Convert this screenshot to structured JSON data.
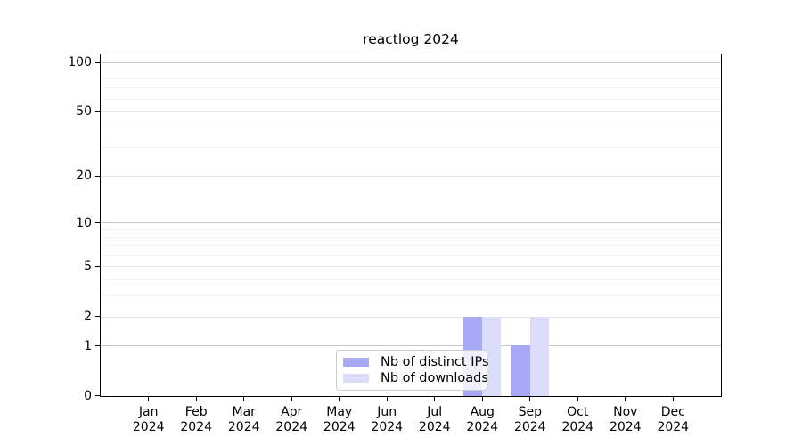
{
  "chart_data": {
    "type": "bar",
    "title": "reactlog 2024",
    "categories": [
      "Jan",
      "Feb",
      "Mar",
      "Apr",
      "May",
      "Jun",
      "Jul",
      "Aug",
      "Sep",
      "Oct",
      "Nov",
      "Dec"
    ],
    "year_label": "2024",
    "series": [
      {
        "name": "Nb of distinct IPs",
        "color": "#a8a9f6",
        "values": [
          0,
          0,
          0,
          0,
          0,
          0,
          0,
          2,
          1,
          0,
          0,
          0
        ]
      },
      {
        "name": "Nb of downloads",
        "color": "#dcddfb",
        "values": [
          0,
          0,
          0,
          0,
          0,
          0,
          0,
          2,
          2,
          0,
          0,
          0
        ]
      }
    ],
    "y_axis": {
      "scale": "log1p",
      "major_tick_values": [
        0,
        1,
        2,
        5,
        10,
        20,
        50,
        100
      ],
      "major_tick_labels": [
        "0",
        "1",
        "2",
        "5",
        "10",
        "20",
        "50",
        "100"
      ],
      "decade_gridlines": [
        1,
        10,
        100
      ],
      "light_major_gridlines": [
        2,
        5,
        20,
        50
      ],
      "minor_gridlines": [
        3,
        4,
        6,
        7,
        8,
        9,
        30,
        40,
        60,
        70,
        80,
        90
      ]
    },
    "legend": {
      "position": "bottom-center",
      "entries": [
        "Nb of distinct IPs",
        "Nb of downloads"
      ]
    },
    "grid": true,
    "colors": {
      "bar_distinct_ips": "#a8a9f6",
      "bar_downloads": "#dcddfb",
      "decade_grid": "#c6c6c6",
      "major_grid": "#e7e7e7",
      "minor_grid": "#f2f2f2",
      "spine": "#000000",
      "background": "#ffffff"
    }
  }
}
